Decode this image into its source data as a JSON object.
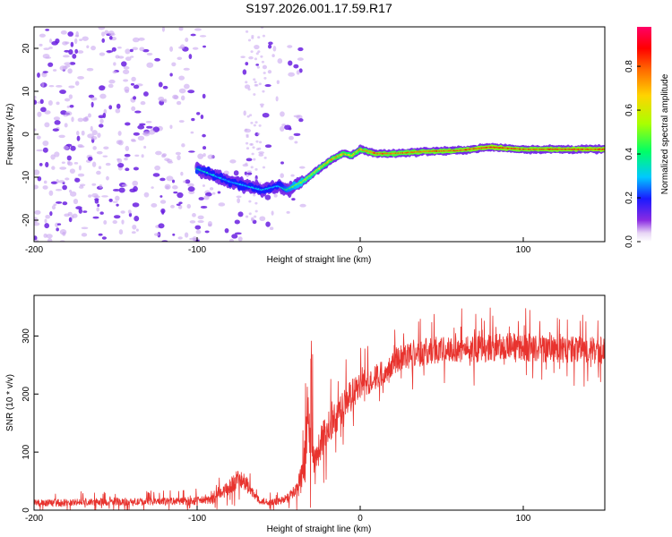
{
  "title": "S197.2026.001.17.59.R17",
  "colorbar": {
    "label": "Normalized spectral amplitude",
    "ticks": [
      "0.0",
      "0.2",
      "0.4",
      "0.6",
      "0.8"
    ],
    "tick_values": [
      0.0,
      0.2,
      0.4,
      0.6,
      0.8
    ],
    "range": [
      0,
      0.98
    ]
  },
  "chart_data": [
    {
      "type": "heatmap",
      "title": "S197.2026.001.17.59.R17",
      "xlabel": "Height of straight line (km)",
      "ylabel": "Frequency (Hz)",
      "xlim": [
        -200,
        150
      ],
      "ylim": [
        -25,
        25
      ],
      "x_ticks": [
        "-200",
        "-100",
        "0",
        "100"
      ],
      "x_tick_values": [
        -200,
        -100,
        0,
        100
      ],
      "y_ticks": [
        "-20",
        "-10",
        "0",
        "10",
        "20"
      ],
      "y_tick_values": [
        -20,
        -10,
        0,
        10,
        20
      ],
      "ridge": {
        "description": "narrow carrier line of high amplitude",
        "x": [
          -100,
          -80,
          -60,
          -50,
          -45,
          -35,
          -25,
          -18,
          -10,
          -5,
          0,
          10,
          20,
          40,
          60,
          80,
          100,
          150
        ],
        "freq": [
          -8,
          -11,
          -13,
          -12,
          -13,
          -11,
          -8,
          -6,
          -4.5,
          -5,
          -3.5,
          -4.5,
          -4.5,
          -4,
          -3.8,
          -3,
          -3.5,
          -3.5
        ],
        "amplitude": [
          0.4,
          0.3,
          0.35,
          0.3,
          0.45,
          0.6,
          0.7,
          0.8,
          0.8,
          0.75,
          0.8,
          0.9,
          0.85,
          0.9,
          0.9,
          0.95,
          0.9,
          0.95
        ]
      },
      "noise_region": {
        "x_min": -200,
        "x_max": -35,
        "amplitude": 0.05
      }
    },
    {
      "type": "line",
      "xlabel": "Height of straight line (km)",
      "ylabel": "SNR (10 * v/v)",
      "xlim": [
        -200,
        150
      ],
      "ylim": [
        0,
        370
      ],
      "x_ticks": [
        "-200",
        "-100",
        "0",
        "100"
      ],
      "x_tick_values": [
        -200,
        -100,
        0,
        100
      ],
      "y_ticks": [
        "0",
        "100",
        "200",
        "300"
      ],
      "y_tick_values": [
        0,
        100,
        200,
        300
      ],
      "series": [
        {
          "name": "SNR",
          "color": "#e8332e",
          "x": [
            -200,
            -180,
            -160,
            -140,
            -120,
            -100,
            -90,
            -80,
            -75,
            -70,
            -65,
            -60,
            -55,
            -50,
            -45,
            -40,
            -35,
            -32,
            -30,
            -28,
            -25,
            -20,
            -15,
            -10,
            -5,
            0,
            5,
            10,
            15,
            20,
            25,
            30,
            40,
            50,
            60,
            70,
            80,
            90,
            100,
            110,
            120,
            130,
            140,
            150
          ],
          "y": [
            12,
            13,
            14,
            14,
            15,
            16,
            18,
            40,
            55,
            45,
            25,
            15,
            14,
            15,
            20,
            30,
            60,
            150,
            110,
            80,
            110,
            140,
            160,
            180,
            200,
            210,
            220,
            230,
            240,
            255,
            265,
            270,
            272,
            275,
            278,
            278,
            280,
            282,
            280,
            278,
            278,
            276,
            275,
            275
          ],
          "spread": [
            8,
            8,
            8,
            8,
            8,
            9,
            10,
            18,
            22,
            18,
            10,
            8,
            8,
            8,
            10,
            15,
            35,
            60,
            50,
            35,
            40,
            40,
            35,
            35,
            35,
            30,
            30,
            28,
            28,
            28,
            30,
            30,
            30,
            30,
            30,
            30,
            30,
            30,
            30,
            30,
            30,
            30,
            30,
            30
          ]
        }
      ]
    }
  ]
}
